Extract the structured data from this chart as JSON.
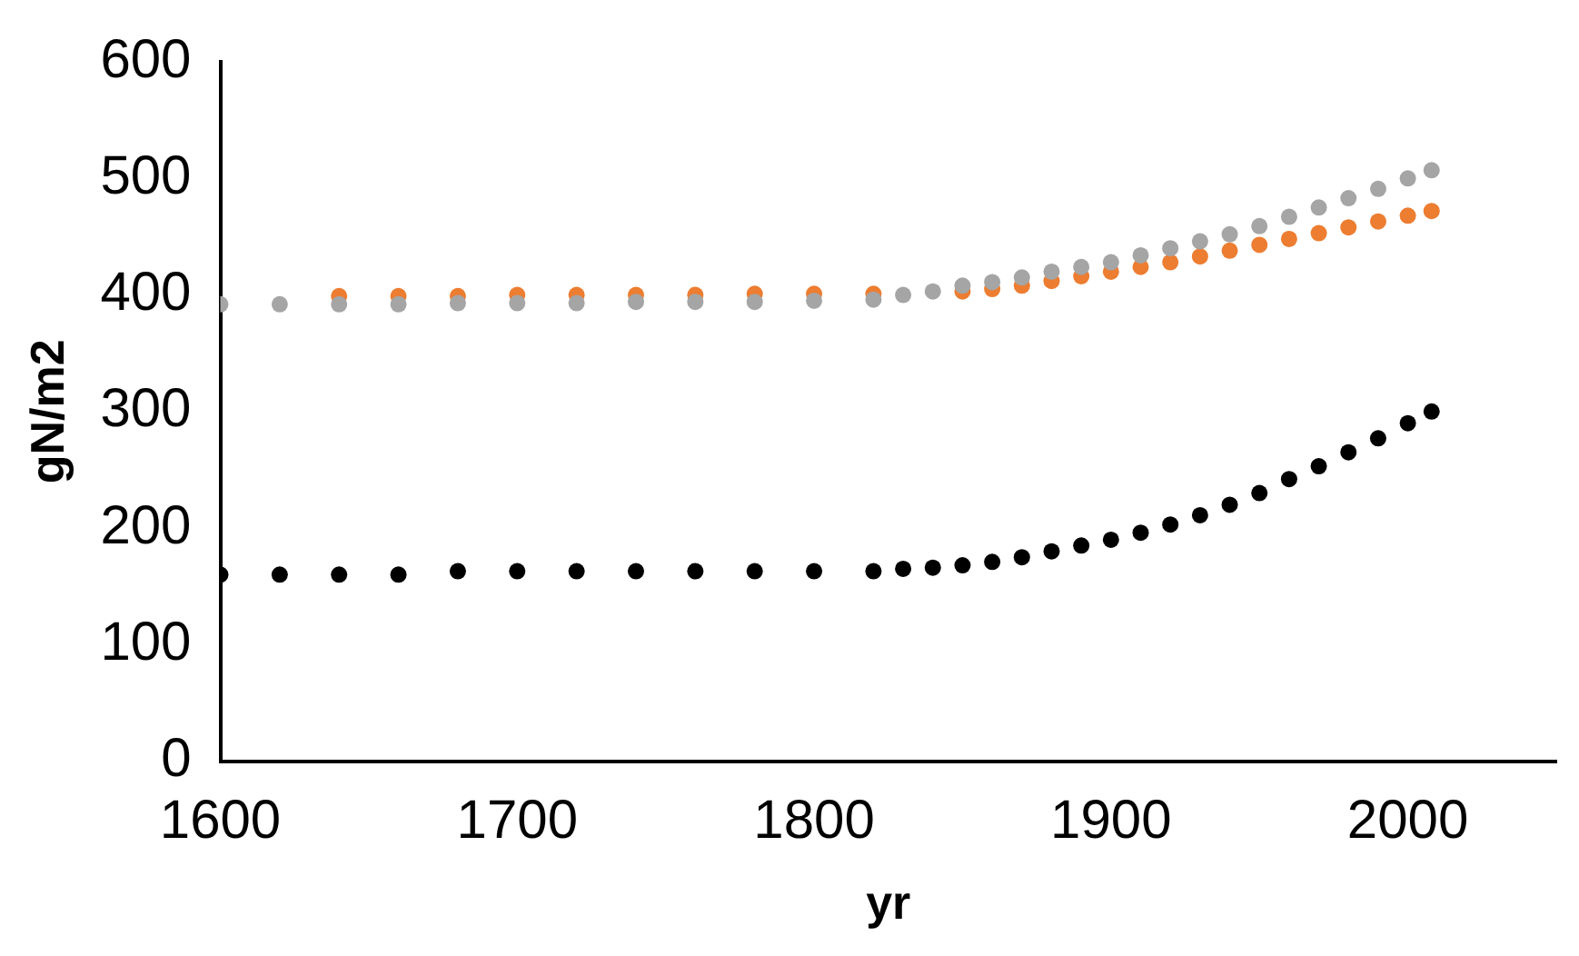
{
  "chart_data": {
    "type": "scatter",
    "xlabel": "yr",
    "ylabel": "gN/m2",
    "xlim": [
      1600,
      2050
    ],
    "xticks": [
      1600,
      1700,
      1800,
      1900,
      2000
    ],
    "ylim": [
      0,
      600
    ],
    "yticks": [
      0,
      100,
      200,
      300,
      400,
      500,
      600
    ],
    "grid": false,
    "legend": false,
    "marker": "circle",
    "x": [
      1600,
      1620,
      1640,
      1660,
      1680,
      1700,
      1720,
      1740,
      1760,
      1780,
      1800,
      1820,
      1830,
      1840,
      1850,
      1860,
      1870,
      1880,
      1890,
      1900,
      1910,
      1920,
      1930,
      1940,
      1950,
      1960,
      1970,
      1980,
      1990,
      2000,
      2008
    ],
    "series": [
      {
        "color": "#000000",
        "values": [
          160,
          160,
          160,
          160,
          163,
          163,
          163,
          163,
          163,
          163,
          163,
          163,
          165,
          166,
          168,
          171,
          175,
          180,
          185,
          190,
          196,
          203,
          211,
          220,
          230,
          242,
          253,
          265,
          277,
          290,
          300
        ]
      },
      {
        "color": "#ed7d31",
        "values": [
          null,
          null,
          399,
          399,
          399,
          400,
          400,
          400,
          400,
          401,
          401,
          401,
          null,
          null,
          403,
          405,
          408,
          412,
          416,
          420,
          424,
          428,
          433,
          438,
          443,
          448,
          453,
          458,
          463,
          468,
          472
        ]
      },
      {
        "color": "#a5a5a5",
        "values": [
          392,
          392,
          392,
          392,
          393,
          393,
          393,
          394,
          394,
          394,
          395,
          396,
          400,
          403,
          408,
          411,
          415,
          420,
          424,
          428,
          434,
          440,
          446,
          452,
          459,
          467,
          475,
          483,
          491,
          500,
          507
        ]
      }
    ]
  }
}
